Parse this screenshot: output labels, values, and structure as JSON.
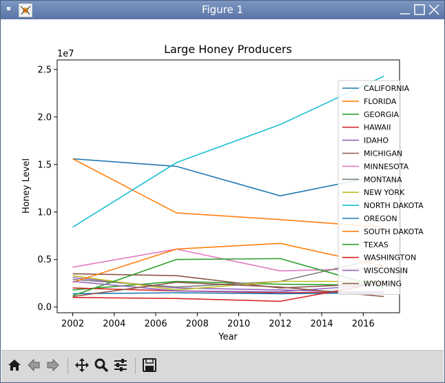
{
  "window": {
    "title": "Figure 1"
  },
  "toolbar": {
    "buttons": [
      {
        "name": "home-button",
        "icon": "home-icon"
      },
      {
        "name": "back-button",
        "icon": "arrow-left-icon"
      },
      {
        "name": "forward-button",
        "icon": "arrow-right-icon"
      },
      {
        "name": "pan-button",
        "icon": "move-icon"
      },
      {
        "name": "zoom-button",
        "icon": "zoom-icon"
      },
      {
        "name": "configure-subplots-button",
        "icon": "sliders-icon"
      },
      {
        "name": "save-button",
        "icon": "save-icon"
      }
    ]
  },
  "chart_data": {
    "type": "line",
    "title": "Large Honey Producers",
    "xlabel": "Year",
    "ylabel": "Honey Level",
    "offset_text": "1e7",
    "x": [
      2002,
      2007,
      2012,
      2017
    ],
    "xticks": [
      "2002",
      "2004",
      "2006",
      "2008",
      "2010",
      "2012",
      "2014",
      "2016"
    ],
    "yticks": [
      "0.0",
      "0.5",
      "1.0",
      "1.5",
      "2.0",
      "2.5"
    ],
    "xlim": [
      2001.25,
      2017.75
    ],
    "ylim": [
      -0.06,
      2.6
    ],
    "y_unit_scale": "1e7",
    "legend_position": "right",
    "series": [
      {
        "name": "CALIFORNIA",
        "color": "#1f77b4",
        "values": [
          1.56,
          1.48,
          1.17,
          1.39
        ]
      },
      {
        "name": "FLORIDA",
        "color": "#ff7f0e",
        "values": [
          1.56,
          0.99,
          0.92,
          0.84
        ]
      },
      {
        "name": "GEORGIA",
        "color": "#2ca02c",
        "values": [
          0.18,
          0.27,
          0.24,
          0.23
        ]
      },
      {
        "name": "HAWAII",
        "color": "#d62728",
        "values": [
          0.2,
          0.17,
          0.15,
          0.16
        ]
      },
      {
        "name": "IDAHO",
        "color": "#9467bd",
        "values": [
          0.31,
          0.2,
          0.18,
          0.15
        ]
      },
      {
        "name": "MICHIGAN",
        "color": "#8c564b",
        "values": [
          0.35,
          0.33,
          0.2,
          0.25
        ]
      },
      {
        "name": "MINNESOTA",
        "color": "#e377c2",
        "values": [
          0.42,
          0.61,
          0.38,
          0.41
        ]
      },
      {
        "name": "MONTANA",
        "color": "#7f7f7f",
        "values": [
          0.29,
          0.21,
          0.27,
          0.52
        ]
      },
      {
        "name": "NEW YORK",
        "color": "#bcbd22",
        "values": [
          0.33,
          0.18,
          0.27,
          0.27
        ]
      },
      {
        "name": "NORTH DAKOTA",
        "color": "#17becf",
        "values": [
          0.84,
          1.52,
          1.92,
          2.43
        ]
      },
      {
        "name": "OREGON",
        "color": "#1f77b4",
        "values": [
          0.14,
          0.15,
          0.14,
          0.15
        ]
      },
      {
        "name": "SOUTH DAKOTA",
        "color": "#ff7f0e",
        "values": [
          0.26,
          0.61,
          0.67,
          0.43
        ]
      },
      {
        "name": "TEXAS",
        "color": "#2ca02c",
        "values": [
          0.12,
          0.5,
          0.51,
          0.2
        ]
      },
      {
        "name": "WASHINGTON",
        "color": "#d62728",
        "values": [
          0.1,
          0.09,
          0.06,
          0.26
        ]
      },
      {
        "name": "WISCONSIN",
        "color": "#9467bd",
        "values": [
          0.27,
          0.17,
          0.16,
          0.24
        ]
      },
      {
        "name": "WYOMING",
        "color": "#8c564b",
        "values": [
          0.11,
          0.26,
          0.21,
          0.11
        ]
      }
    ]
  }
}
